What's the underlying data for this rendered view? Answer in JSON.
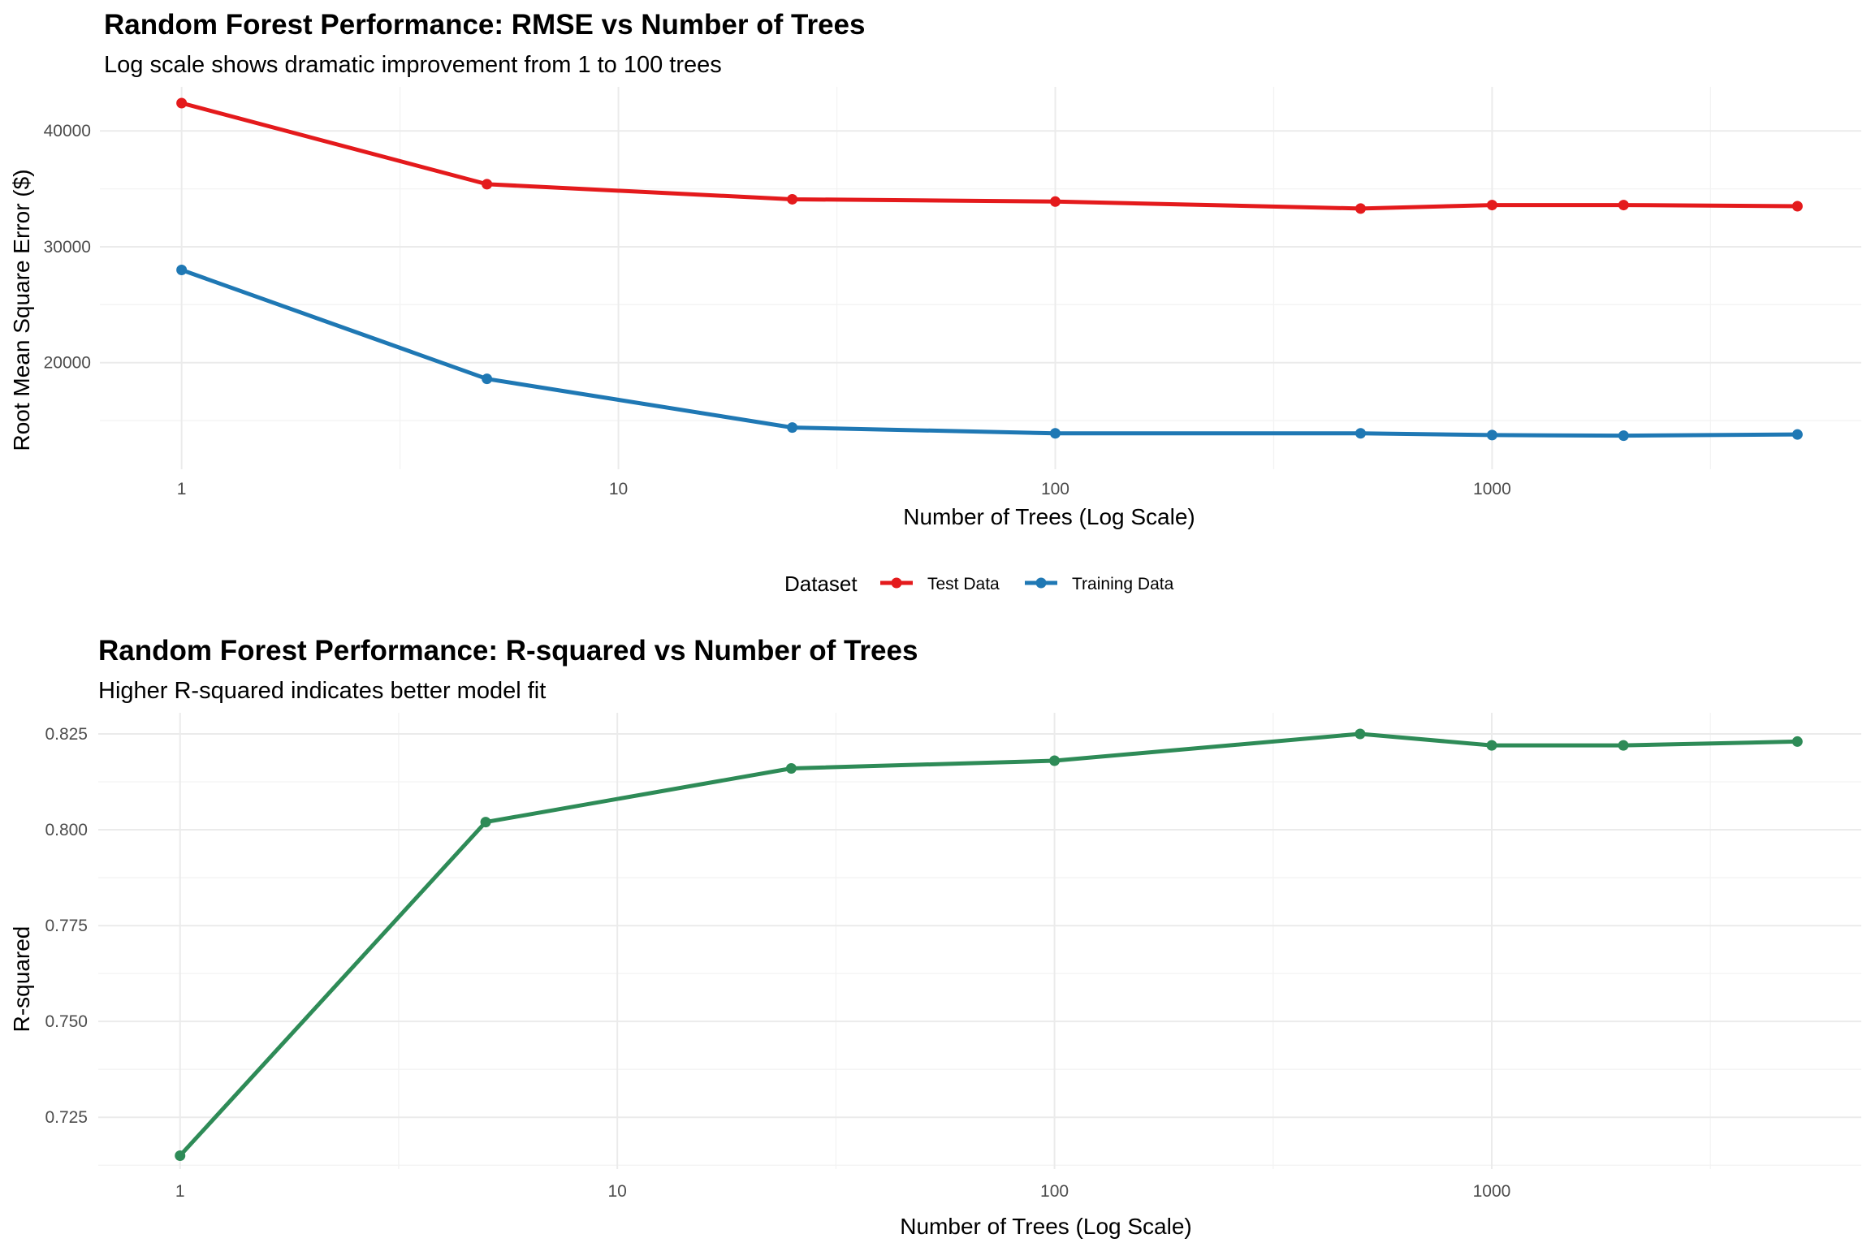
{
  "chart_data": [
    {
      "type": "line",
      "title": "Random Forest Performance: RMSE vs Number of Trees",
      "subtitle": "Log scale shows dramatic improvement from 1 to 100 trees",
      "xlabel": "Number of Trees (Log Scale)",
      "ylabel": "Root Mean Square Error ($)",
      "x_scale": "log10",
      "xlim": [
        0.65,
        7000
      ],
      "ylim": [
        10800,
        43800
      ],
      "x_ticks": [
        1,
        10,
        100,
        1000
      ],
      "x_tick_labels": [
        "1",
        "10",
        "100",
        "1000"
      ],
      "y_ticks": [
        20000,
        30000,
        40000
      ],
      "y_tick_labels": [
        "20000",
        "30000",
        "40000"
      ],
      "grid": true,
      "legend": {
        "title": "Dataset",
        "position": "between plots, centered"
      },
      "x": [
        1,
        5,
        25,
        100,
        500,
        1000,
        2000,
        5000
      ],
      "series": [
        {
          "name": "Test Data",
          "color": "#e41a1c",
          "values": [
            42400,
            35400,
            34100,
            33900,
            33300,
            33600,
            33600,
            33500
          ]
        },
        {
          "name": "Training Data",
          "color": "#1f78b4",
          "values": [
            28000,
            18600,
            14400,
            13900,
            13900,
            13750,
            13700,
            13800
          ]
        }
      ]
    },
    {
      "type": "line",
      "title": "Random Forest Performance: R-squared vs Number of Trees",
      "subtitle": "Higher R-squared indicates better model fit",
      "xlabel": "Number of Trees (Log Scale)",
      "ylabel": "R-squared",
      "x_scale": "log10",
      "xlim": [
        0.65,
        7000
      ],
      "ylim": [
        0.7115,
        0.8305
      ],
      "x_ticks": [
        1,
        10,
        100,
        1000
      ],
      "x_tick_labels": [
        "1",
        "10",
        "100",
        "1000"
      ],
      "y_ticks": [
        0.725,
        0.75,
        0.775,
        0.8,
        0.825
      ],
      "y_tick_labels": [
        "0.725",
        "0.750",
        "0.775",
        "0.800",
        "0.825"
      ],
      "grid": true,
      "x": [
        1,
        5,
        25,
        100,
        500,
        1000,
        2000,
        5000
      ],
      "series": [
        {
          "color": "#2e8b57",
          "values": [
            0.715,
            0.802,
            0.816,
            0.818,
            0.825,
            0.822,
            0.822,
            0.823
          ]
        }
      ]
    }
  ]
}
